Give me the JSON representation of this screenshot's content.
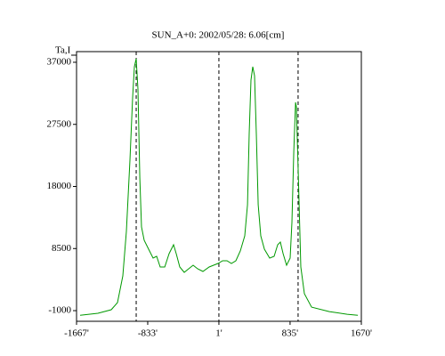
{
  "chart_data": {
    "type": "line",
    "title": "SUN_A+0: 2002/05/28: 6.06[cm]",
    "y_label": "Ta,I",
    "xlim": [
      -1667,
      1670
    ],
    "xticks": [
      {
        "value": -1667,
        "label": "-1667'"
      },
      {
        "value": -833,
        "label": "-833'"
      },
      {
        "value": 1,
        "label": "1'"
      },
      {
        "value": 835,
        "label": "835'"
      },
      {
        "value": 1670,
        "label": "1670'"
      }
    ],
    "ylim": [
      -2630,
      38630
    ],
    "yticks": [
      37000,
      27500,
      18000,
      8500,
      -1000
    ],
    "vlines": [
      -968,
      1,
      929
    ],
    "series": [
      {
        "color": "#009900",
        "x": [
          -1625,
          -1417,
          -1260,
          -1187,
          -1125,
          -1083,
          -1041,
          -1010,
          -989,
          -968,
          -947,
          -926,
          -906,
          -874,
          -822,
          -770,
          -728,
          -687,
          -634,
          -582,
          -530,
          -499,
          -457,
          -405,
          -353,
          -301,
          -249,
          -186,
          -113,
          -61,
          -9,
          44,
          96,
          148,
          200,
          252,
          304,
          336,
          356,
          377,
          398,
          419,
          440,
          461,
          492,
          534,
          596,
          648,
          690,
          721,
          753,
          794,
          836,
          857,
          878,
          899,
          909,
          930,
          961,
          1003,
          1087,
          1295,
          1504,
          1629
        ],
        "values": [
          -1700,
          -1400,
          -860,
          230,
          4310,
          11120,
          22020,
          31550,
          36320,
          37540,
          32910,
          19290,
          11800,
          9760,
          8400,
          7040,
          7310,
          5670,
          5670,
          7720,
          9080,
          7720,
          5670,
          4860,
          5400,
          5950,
          5400,
          4990,
          5670,
          5950,
          6220,
          6630,
          6630,
          6220,
          6630,
          8130,
          10440,
          15210,
          26100,
          34280,
          36320,
          34960,
          26100,
          15210,
          10440,
          8400,
          7040,
          7310,
          9080,
          9490,
          7720,
          5950,
          7040,
          12480,
          23380,
          30870,
          30190,
          20660,
          5670,
          1590,
          -460,
          -1140,
          -1550,
          -1700
        ]
      }
    ]
  }
}
